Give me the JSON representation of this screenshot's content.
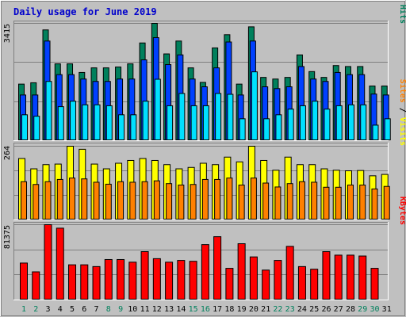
{
  "chart_data": {
    "type": "bar",
    "title": "Daily usage for June 2019",
    "categories": [
      "1",
      "2",
      "3",
      "4",
      "5",
      "6",
      "7",
      "8",
      "9",
      "10",
      "11",
      "12",
      "13",
      "14",
      "15",
      "16",
      "17",
      "18",
      "19",
      "20",
      "21",
      "22",
      "23",
      "24",
      "25",
      "26",
      "27",
      "28",
      "29",
      "30",
      "31"
    ],
    "weekend_days": [
      "1",
      "2",
      "8",
      "9",
      "15",
      "16",
      "22",
      "23",
      "29",
      "30"
    ],
    "colors": {
      "background": "#c0c0c0",
      "title": "#0000cc",
      "grid": "#808080",
      "hits": "#00805c",
      "files": "#0040ff",
      "pages": "#00e0ff",
      "visits": "#ffff00",
      "sites": "#ff8000",
      "kbytes": "#ff0000",
      "weekday": "#000000",
      "weekend": "#00805c"
    },
    "panels": [
      {
        "name": "hits-files-pages",
        "scale_max_label": "3415",
        "ylim": [
          0,
          3415
        ],
        "legend_parts": [
          {
            "text": "Pages",
            "color": "#00e0ff"
          },
          {
            "text": " / ",
            "color": "#000000"
          },
          {
            "text": "Files",
            "color": "#0040ff"
          },
          {
            "text": " / ",
            "color": "#000000"
          },
          {
            "text": "Hits",
            "color": "#00805c"
          }
        ],
        "series": [
          {
            "name": "Hits",
            "color": "#00805c",
            "values": [
              1647,
              1686,
              3225,
              2237,
              2237,
              1986,
              2120,
              2120,
              2145,
              2237,
              2845,
              3415,
              2526,
              2901,
              2120,
              1697,
              2701,
              3085,
              1647,
              3314,
              1842,
              1795,
              1842,
              2498,
              2012,
              1842,
              2187,
              2159,
              2159,
              1592,
              1592
            ]
          },
          {
            "name": "Files",
            "color": "#0040ff",
            "values": [
              1330,
              1330,
              2901,
              1923,
              1923,
              1795,
              1725,
              1725,
              1795,
              1795,
              2353,
              3000,
              2215,
              2498,
              1795,
              1569,
              2120,
              2873,
              1330,
              2901,
              1569,
              1516,
              1569,
              2159,
              1795,
              1725,
              1986,
              1923,
              1923,
              1358,
              1330
            ]
          },
          {
            "name": "Pages",
            "color": "#00e0ff",
            "values": [
              754,
              712,
              1725,
              990,
              1150,
              1044,
              1044,
              1017,
              754,
              754,
              1150,
              1788,
              1017,
              1375,
              1017,
              1017,
              1375,
              1350,
              638,
              2004,
              638,
              754,
              919,
              1017,
              1150,
              919,
              1017,
              1044,
              1044,
              452,
              638
            ]
          }
        ]
      },
      {
        "name": "visits-sites",
        "scale_max_label": "264",
        "ylim": [
          0,
          264
        ],
        "legend_parts": [
          {
            "text": "Sites",
            "color": "#ff8000"
          },
          {
            "text": " / ",
            "color": "#000000"
          },
          {
            "text": "Visits",
            "color": "#ffff00"
          }
        ],
        "series": [
          {
            "name": "Visits",
            "color": "#ffff00",
            "values": [
              220,
              183,
              198,
              200,
              264,
              253,
              200,
              183,
              203,
              213,
              220,
              213,
              198,
              183,
              188,
              203,
              198,
              225,
              208,
              264,
              213,
              178,
              225,
              198,
              198,
              183,
              178,
              176,
              177,
              158,
              163
            ]
          },
          {
            "name": "Sites",
            "color": "#ff8000",
            "values": [
              137,
              127,
              137,
              145,
              150,
              147,
              135,
              128,
              137,
              135,
              137,
              140,
              130,
              125,
              127,
              145,
              145,
              150,
              125,
              150,
              132,
              118,
              130,
              137,
              135,
              117,
              117,
              125,
              125,
              111,
              120
            ]
          }
        ]
      },
      {
        "name": "kbytes",
        "scale_max_label": "81375",
        "ylim": [
          0,
          81375
        ],
        "legend_parts": [
          {
            "text": "KBytes",
            "color": "#ff0000"
          }
        ],
        "series": [
          {
            "name": "KBytes",
            "color": "#ff0000",
            "values": [
              39900,
              30400,
              81375,
              77600,
              38000,
              38000,
              36100,
              43700,
              43700,
              40850,
              52250,
              44650,
              40850,
              42750,
              41800,
              59850,
              68400,
              34200,
              60800,
              46550,
              32300,
              42750,
              57950,
              36100,
              33250,
              52250,
              48450,
              48450,
              47500,
              34200,
              0
            ]
          }
        ]
      }
    ]
  }
}
